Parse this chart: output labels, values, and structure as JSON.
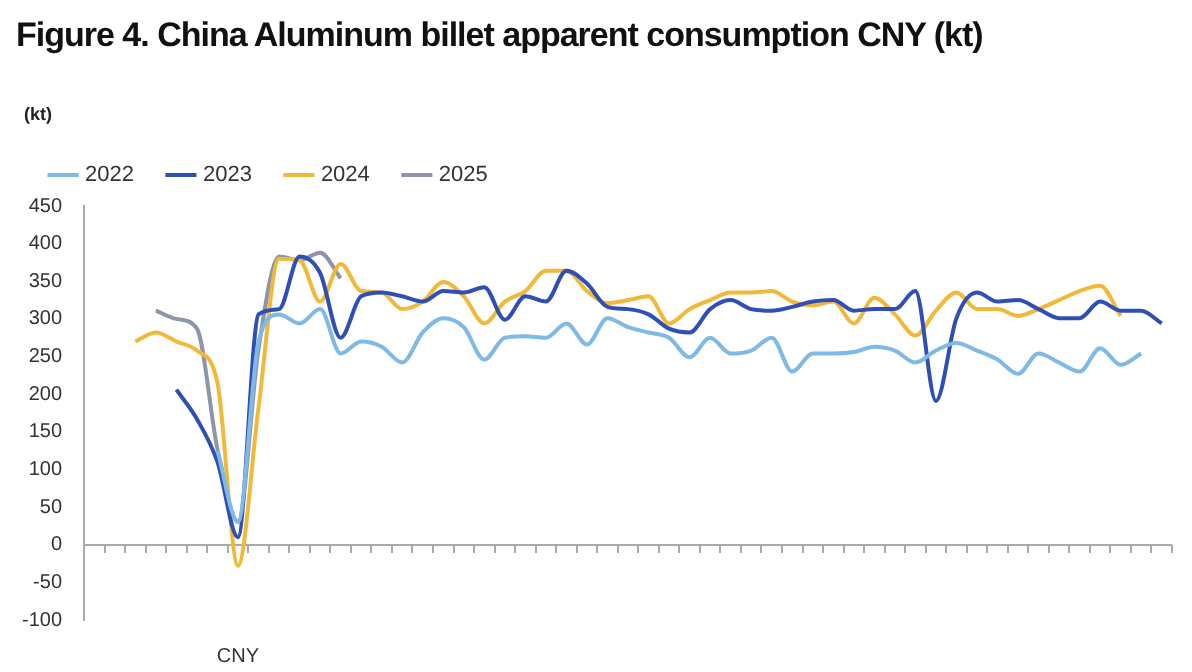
{
  "chart_data": {
    "type": "line",
    "title": "Figure 4. China Aluminum billet apparent consumption CNY (kt)",
    "ylabel": "(kt)",
    "categories": [
      null,
      null,
      null,
      null,
      null,
      null,
      null,
      "CNY",
      null,
      null,
      null,
      null,
      null,
      null,
      null,
      null,
      null,
      null,
      null,
      null,
      null,
      null,
      null,
      null,
      null,
      null,
      null,
      null,
      null,
      null,
      null,
      null,
      null,
      null,
      null,
      null,
      null,
      null,
      null,
      null,
      null,
      null,
      null,
      null,
      null,
      null,
      null,
      null,
      null,
      null,
      null,
      null,
      null
    ],
    "series": [
      {
        "name": "2022",
        "color": "#7fb9e6",
        "values": [
          null,
          null,
          null,
          null,
          null,
          null,
          125,
          30,
          270,
          306,
          294,
          313,
          254,
          270,
          263,
          242,
          282,
          301,
          289,
          246,
          275,
          277,
          275,
          294,
          266,
          301,
          289,
          282,
          275,
          249,
          275,
          254,
          258,
          275,
          230,
          254,
          254,
          256,
          263,
          258,
          242,
          258,
          268,
          258,
          246,
          227,
          254,
          242,
          230,
          261,
          239,
          254,
          null
        ]
      },
      {
        "name": "2023",
        "color": "#2f4fb5",
        "values": [
          null,
          null,
          null,
          null,
          206,
          167,
          110,
          10,
          306,
          313,
          383,
          361,
          275,
          330,
          335,
          330,
          323,
          337,
          335,
          342,
          299,
          330,
          323,
          364,
          347,
          316,
          313,
          306,
          287,
          282,
          313,
          325,
          313,
          311,
          316,
          323,
          325,
          311,
          313,
          313,
          337,
          191,
          301,
          335,
          323,
          325,
          313,
          301,
          301,
          323,
          311,
          311,
          294
        ]
      },
      {
        "name": "2024",
        "color": "#f0b93a",
        "values": [
          null,
          null,
          270,
          282,
          270,
          258,
          215,
          -28,
          182,
          380,
          378,
          323,
          373,
          337,
          335,
          313,
          323,
          349,
          330,
          294,
          323,
          337,
          364,
          364,
          337,
          321,
          325,
          330,
          294,
          313,
          325,
          335,
          335,
          337,
          323,
          318,
          323,
          294,
          328,
          306,
          278,
          311,
          335,
          313,
          313,
          304,
          313,
          325,
          337,
          344,
          304,
          null,
          null
        ]
      },
      {
        "name": "2025",
        "color": "#8c96a8",
        "values": [
          null,
          null,
          null,
          311,
          300,
          287,
          127,
          31,
          260,
          383,
          378,
          388,
          354,
          null,
          null,
          null,
          null,
          null,
          null,
          null,
          null,
          null,
          null,
          null,
          null,
          null,
          null,
          null,
          null,
          null,
          null,
          null,
          null,
          null,
          null,
          null,
          null,
          null,
          null,
          null,
          null,
          null,
          null,
          null,
          null,
          null,
          null,
          null,
          null,
          null,
          null,
          null,
          null
        ]
      }
    ],
    "ylim": [
      -100,
      450
    ],
    "yticks": [
      -100,
      -50,
      0,
      50,
      100,
      150,
      200,
      250,
      300,
      350,
      400,
      450
    ],
    "grid": false,
    "ref_lines": [
      {
        "axis": "y",
        "value": 0,
        "color": "#aaaaaa"
      }
    ],
    "legend": "top",
    "marker": "none",
    "line_style": "solid"
  }
}
